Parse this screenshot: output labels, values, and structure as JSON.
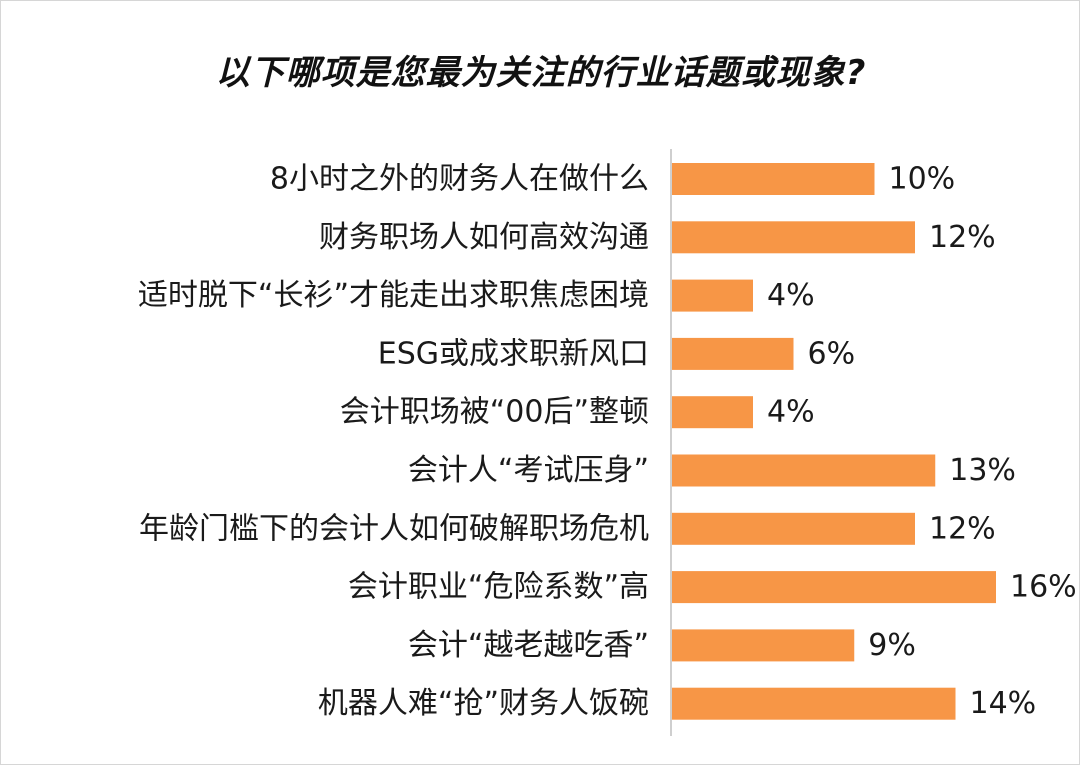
{
  "chart_data": {
    "type": "bar",
    "orientation": "horizontal",
    "title": "以下哪项是您最为关注的行业话题或现象?",
    "categories": [
      "8小时之外的财务人在做什么",
      "财务职场人如何高效沟通",
      "适时脱下“长衫”才能走出求职焦虑困境",
      "ESG或成求职新风口",
      "会计职场被“00后”整顿",
      "会计人“考试压身”",
      "年龄门槛下的会计人如何破解职场危机",
      "会计职业“危险系数”高",
      "会计“越老越吃香”",
      "机器人难“抢”财务人饭碗"
    ],
    "values": [
      10,
      12,
      4,
      6,
      4,
      13,
      12,
      16,
      9,
      14
    ],
    "value_labels": [
      "10%",
      "12%",
      "4%",
      "6%",
      "4%",
      "13%",
      "12%",
      "16%",
      "9%",
      "14%"
    ],
    "unit": "%",
    "bar_color": "#F79646",
    "axis_line_color": "#bfbfbf",
    "grid": false,
    "legend": "none"
  }
}
